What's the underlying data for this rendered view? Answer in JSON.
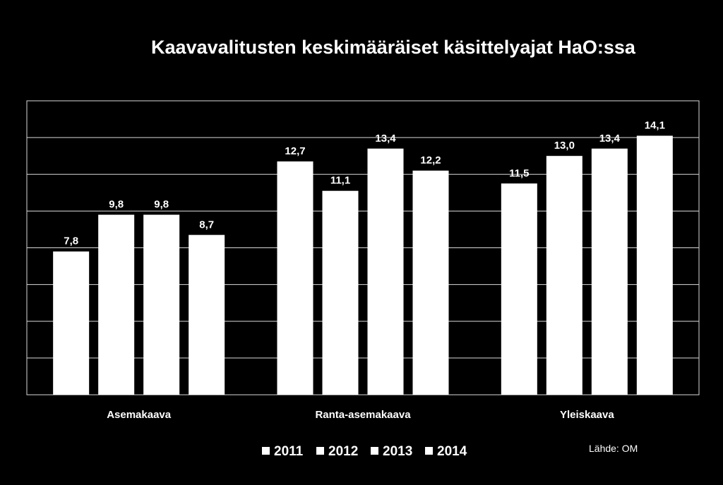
{
  "chart_data": {
    "type": "bar",
    "title": "Kaavavalitusten keskimääräiset käsittelyajat HaO:ssa",
    "categories": [
      "Asemakaava",
      "Ranta-asemakaava",
      "Yleiskaava"
    ],
    "series": [
      {
        "name": "2011",
        "values": [
          7.8,
          12.7,
          11.5
        ],
        "labels": [
          "7,8",
          "12,7",
          "11,5"
        ]
      },
      {
        "name": "2012",
        "values": [
          9.8,
          11.1,
          13.0
        ],
        "labels": [
          "9,8",
          "11,1",
          "13,0"
        ]
      },
      {
        "name": "2013",
        "values": [
          9.8,
          13.4,
          13.4
        ],
        "labels": [
          "9,8",
          "13,4",
          "13,4"
        ]
      },
      {
        "name": "2014",
        "values": [
          8.7,
          12.2,
          14.1
        ],
        "labels": [
          "8,7",
          "12,2",
          "14,1"
        ]
      }
    ],
    "ylim": [
      0,
      16
    ],
    "y_gridline_step": 2,
    "grid": true,
    "legend_position": "bottom",
    "bar_color": "#ffffff",
    "background_color": "#000000",
    "source": "Lähde: OM"
  }
}
